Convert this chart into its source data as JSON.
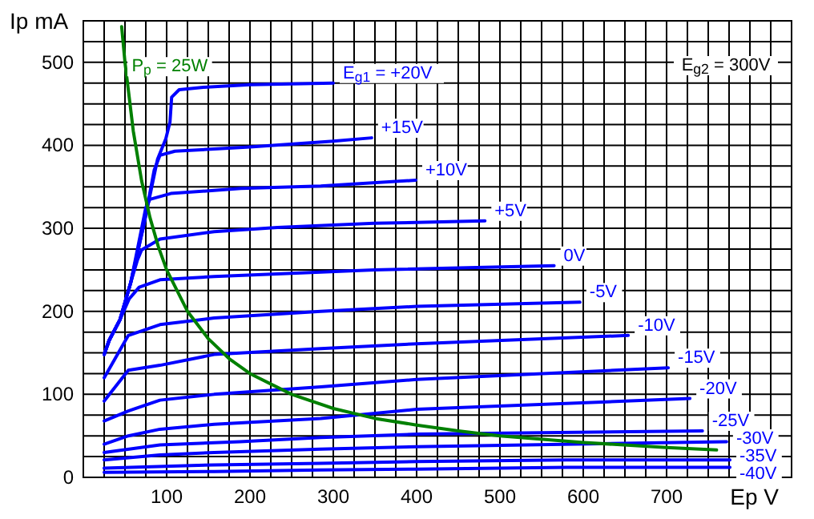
{
  "chart_data": {
    "type": "line",
    "xlabel": "Ep V",
    "ylabel": "Ip mA",
    "xlim": [
      0,
      850
    ],
    "ylim": [
      0,
      550
    ],
    "xticks": [
      {
        "value": 0,
        "label": null
      },
      {
        "value": 25,
        "label": null
      },
      {
        "value": 50,
        "label": null
      },
      {
        "value": 75,
        "label": null
      },
      100,
      {
        "value": 125,
        "label": null
      },
      {
        "value": 150,
        "label": null
      },
      {
        "value": 175,
        "label": null
      },
      200,
      {
        "value": 225,
        "label": null
      },
      {
        "value": 250,
        "label": null
      },
      {
        "value": 275,
        "label": null
      },
      300,
      {
        "value": 325,
        "label": null
      },
      {
        "value": 350,
        "label": null
      },
      {
        "value": 375,
        "label": null
      },
      400,
      {
        "value": 425,
        "label": null
      },
      {
        "value": 450,
        "label": null
      },
      {
        "value": 475,
        "label": null
      },
      500,
      {
        "value": 525,
        "label": null
      },
      {
        "value": 550,
        "label": null
      },
      {
        "value": 575,
        "label": null
      },
      600,
      {
        "value": 625,
        "label": null
      },
      {
        "value": 650,
        "label": null
      },
      {
        "value": 675,
        "label": null
      },
      700,
      {
        "value": 725,
        "label": null
      },
      {
        "value": 750,
        "label": null
      },
      {
        "value": 775,
        "label": null
      },
      {
        "value": 800,
        "label": null
      },
      {
        "value": 825,
        "label": null
      },
      {
        "value": 850,
        "label": null
      }
    ],
    "yticks": [
      0,
      {
        "value": 25,
        "label": null
      },
      {
        "value": 50,
        "label": null
      },
      {
        "value": 75,
        "label": null
      },
      100,
      {
        "value": 125,
        "label": null
      },
      {
        "value": 150,
        "label": null
      },
      {
        "value": 175,
        "label": null
      },
      200,
      {
        "value": 225,
        "label": null
      },
      {
        "value": 250,
        "label": null
      },
      {
        "value": 275,
        "label": null
      },
      300,
      {
        "value": 325,
        "label": null
      },
      {
        "value": 350,
        "label": null
      },
      {
        "value": 375,
        "label": null
      },
      400,
      {
        "value": 425,
        "label": null
      },
      {
        "value": 450,
        "label": null
      },
      {
        "value": 475,
        "label": null
      },
      500,
      {
        "value": 525,
        "label": null
      },
      {
        "value": 550,
        "label": null
      }
    ],
    "grid": true,
    "annotations": [
      "E$_{g2}$ = 300V"
    ],
    "series": [
      {
        "name": "E$_{g1}$ = +20V",
        "color": "#0000ff",
        "x": [
          25,
          31,
          44,
          57,
          73,
          89,
          99,
          104,
          106,
          115,
          144,
          200,
          300
        ],
        "values": [
          148,
          165,
          190,
          235,
          306,
          383,
          408,
          428,
          458,
          467,
          470,
          473,
          475
        ]
      },
      {
        "name": "+15V",
        "color": "#0000ff",
        "x": [
          25,
          31,
          44,
          57,
          73,
          85,
          92,
          110,
          200,
          300,
          346
        ],
        "values": [
          148,
          165,
          190,
          235,
          306,
          370,
          388,
          393,
          398,
          405,
          409
        ]
      },
      {
        "name": "+10V",
        "color": "#0000ff",
        "x": [
          25,
          31,
          44,
          57,
          68,
          75,
          80,
          105,
          189,
          285,
          399
        ],
        "values": [
          148,
          165,
          190,
          235,
          290,
          325,
          335,
          342,
          348,
          351,
          358
        ]
      },
      {
        "name": "+5V",
        "color": "#0000ff",
        "x": [
          25,
          31,
          44,
          57,
          65,
          70,
          92,
          157,
          233,
          349,
          482
        ],
        "values": [
          148,
          165,
          190,
          235,
          262,
          274,
          287,
          296,
          301,
          306,
          309
        ]
      },
      {
        "name": "0V",
        "color": "#0000ff",
        "x": [
          25,
          31,
          44,
          55,
          67,
          92,
          157,
          349,
          565
        ],
        "values": [
          148,
          165,
          190,
          215,
          229,
          238,
          242,
          250,
          255
        ]
      },
      {
        "name": "-5V",
        "color": "#0000ff",
        "x": [
          25,
          54,
          92,
          157,
          285,
          400,
          596
        ],
        "values": [
          120,
          171,
          184,
          192,
          200,
          206,
          211
        ]
      },
      {
        "name": "-10V",
        "color": "#0000ff",
        "x": [
          25,
          54,
          92,
          157,
          285,
          400,
          654
        ],
        "values": [
          92,
          129,
          135,
          148,
          155,
          161,
          171
        ]
      },
      {
        "name": "-15V",
        "color": "#0000ff",
        "x": [
          25,
          54,
          92,
          157,
          285,
          400,
          702
        ],
        "values": [
          68,
          80,
          93,
          100,
          109,
          118,
          132
        ]
      },
      {
        "name": "-20V",
        "color": "#0000ff",
        "x": [
          25,
          54,
          92,
          157,
          285,
          400,
          728
        ],
        "values": [
          40,
          50,
          58,
          64,
          71,
          82,
          95
        ]
      },
      {
        "name": "-25V",
        "color": "#0000ff",
        "x": [
          25,
          92,
          188,
          285,
          400,
          743
        ],
        "values": [
          30,
          39,
          43,
          48,
          52,
          56
        ]
      },
      {
        "name": "-30V",
        "color": "#0000ff",
        "x": [
          25,
          92,
          157,
          285,
          400,
          772
        ],
        "values": [
          21,
          27,
          30,
          34,
          37,
          43
        ]
      },
      {
        "name": "-35V",
        "color": "#0000ff",
        "x": [
          25,
          157,
          285,
          400,
          580,
          776
        ],
        "values": [
          11,
          15,
          17,
          19,
          21,
          21
        ]
      },
      {
        "name": "-40V",
        "color": "#0000ff",
        "x": [
          25,
          157,
          285,
          400,
          580,
          776
        ],
        "values": [
          6,
          7,
          9,
          10,
          12,
          12
        ]
      },
      {
        "name": "P$_{p}$ = 25W",
        "color": "#008000",
        "x": [
          46,
          50,
          60,
          70,
          80,
          90,
          100,
          125,
          150,
          175,
          200,
          250,
          300,
          350,
          400,
          450,
          500,
          600,
          700,
          760
        ],
        "values": [
          543,
          500,
          417,
          357,
          313,
          278,
          250,
          200,
          167,
          143,
          125,
          100,
          83,
          71,
          63,
          56,
          50,
          42,
          36,
          33
        ]
      }
    ]
  }
}
